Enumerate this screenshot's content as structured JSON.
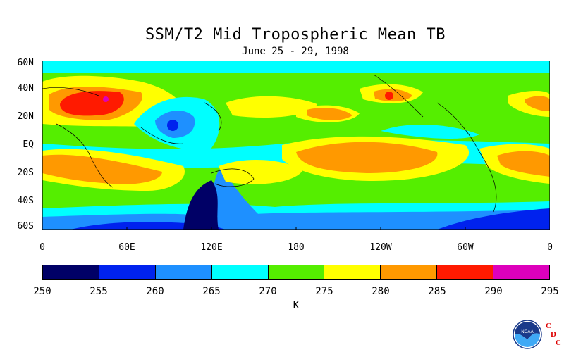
{
  "title": "SSM/T2 Mid Tropospheric Mean TB",
  "subtitle": "June 25 - 29, 1998",
  "chart_data": {
    "type": "heatmap",
    "title": "SSM/T2 Mid Tropospheric Mean TB",
    "subtitle": "June 25 - 29, 1998",
    "y_ticks": [
      "60N",
      "40N",
      "20N",
      "EQ",
      "20S",
      "40S",
      "60S"
    ],
    "x_ticks": [
      "0",
      "60E",
      "120E",
      "180",
      "120W",
      "60W",
      "0"
    ],
    "colorbar": {
      "levels": [
        250,
        255,
        260,
        265,
        270,
        275,
        280,
        285,
        290,
        295
      ],
      "labels": [
        "250",
        "255",
        "260",
        "265",
        "270",
        "275",
        "280",
        "285",
        "290",
        "295"
      ],
      "colors": [
        "#000066",
        "#0022ee",
        "#1e90ff",
        "#00ffff",
        "#55ee00",
        "#ffff00",
        "#ff9900",
        "#ff1a00",
        "#dd00bb"
      ],
      "units": "K"
    }
  },
  "logo": {
    "name": "NOAA",
    "text": "NOAA",
    "letters": [
      "C",
      "D",
      "C"
    ],
    "letter_color": "#dd0000"
  }
}
